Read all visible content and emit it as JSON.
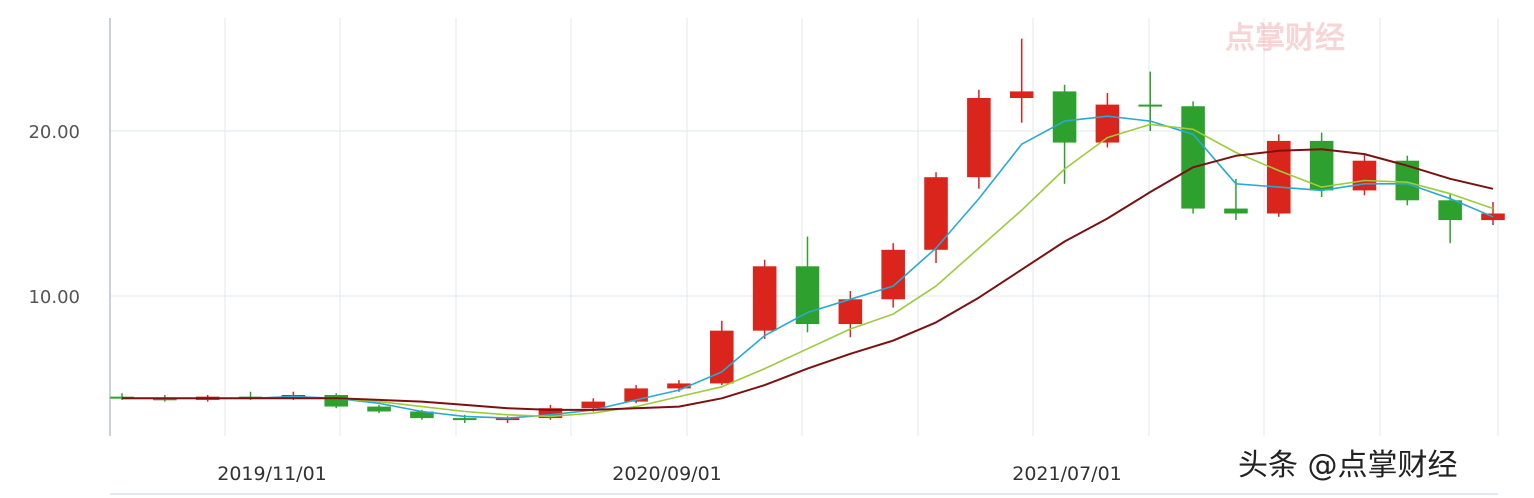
{
  "watermark": {
    "logo_text": "点掌财经",
    "corner_text": "头条 @点掌财经"
  },
  "colors": {
    "up": "#d9251c",
    "down": "#2ea02e",
    "ma_fast": "#2aa9d2",
    "ma_mid": "#9ccb3c",
    "ma_slow": "#7a1212",
    "grid": "#e1e8ee"
  },
  "chart_data": {
    "type": "candlestick",
    "title": "",
    "xlabel": "",
    "ylabel": "",
    "ylim": [
      0,
      26
    ],
    "grid": true,
    "x_tick_labels": [
      "2019/11/01",
      "2020/09/01",
      "2021/07/01"
    ],
    "y_tick_labels": [
      "10.00",
      "20.00"
    ],
    "y_ticks": [
      10,
      20
    ],
    "series": [
      {
        "name": "",
        "kind": "candles",
        "ohlc": [
          [
            "2019-09",
            3.9,
            4.1,
            3.7,
            3.8
          ],
          [
            "2019-10",
            3.8,
            4.0,
            3.6,
            3.7
          ],
          [
            "2019-11",
            3.7,
            4.0,
            3.6,
            3.9
          ],
          [
            "2019-12",
            3.9,
            4.2,
            3.7,
            3.8
          ],
          [
            "2020-01",
            3.8,
            4.2,
            3.7,
            4.0
          ],
          [
            "2020-02",
            4.0,
            4.1,
            3.2,
            3.3
          ],
          [
            "2020-03",
            3.3,
            3.4,
            2.9,
            3.0
          ],
          [
            "2020-04",
            3.0,
            3.1,
            2.5,
            2.6
          ],
          [
            "2020-05",
            2.6,
            2.8,
            2.3,
            2.5
          ],
          [
            "2020-06",
            2.5,
            2.7,
            2.3,
            2.6
          ],
          [
            "2020-07",
            2.6,
            3.4,
            2.5,
            3.2
          ],
          [
            "2020-08",
            3.2,
            3.8,
            3.0,
            3.6
          ],
          [
            "2020-09",
            3.6,
            4.6,
            3.5,
            4.4
          ],
          [
            "2020-10",
            4.4,
            4.9,
            4.2,
            4.7
          ],
          [
            "2020-11",
            4.7,
            8.5,
            4.6,
            7.9
          ],
          [
            "2020-12",
            7.9,
            12.2,
            7.4,
            11.8
          ],
          [
            "2021-01",
            11.8,
            13.6,
            7.8,
            8.3
          ],
          [
            "2021-02",
            8.3,
            10.3,
            7.5,
            9.8
          ],
          [
            "2021-03",
            9.8,
            13.2,
            9.3,
            12.8
          ],
          [
            "2021-04",
            12.8,
            17.5,
            12.0,
            17.2
          ],
          [
            "2021-05",
            17.2,
            22.5,
            16.5,
            22.0
          ],
          [
            "2021-06",
            22.0,
            25.6,
            20.5,
            22.4
          ],
          [
            "2021-07",
            22.4,
            22.8,
            16.8,
            19.3
          ],
          [
            "2021-08",
            19.3,
            22.3,
            19.0,
            21.6
          ],
          [
            "2021-09",
            21.6,
            23.6,
            20.0,
            21.5
          ],
          [
            "2021-10",
            21.5,
            21.8,
            15.0,
            15.3
          ],
          [
            "2021-11",
            15.3,
            17.1,
            14.6,
            15.0
          ],
          [
            "2021-12",
            15.0,
            19.8,
            14.8,
            19.4
          ],
          [
            "2022-01",
            19.4,
            19.9,
            16.0,
            16.4
          ],
          [
            "2022-02",
            16.4,
            18.6,
            16.1,
            18.2
          ],
          [
            "2022-03",
            18.2,
            18.5,
            15.5,
            15.8
          ],
          [
            "2022-04",
            15.8,
            16.2,
            13.2,
            14.6
          ],
          [
            "2022-05",
            14.6,
            15.7,
            14.3,
            15.0
          ]
        ]
      },
      {
        "name": "",
        "kind": "ma_fast",
        "values": [
          3.8,
          3.8,
          3.8,
          3.8,
          3.9,
          3.8,
          3.5,
          3.0,
          2.7,
          2.6,
          2.8,
          3.1,
          3.7,
          4.3,
          5.4,
          7.6,
          9.0,
          9.8,
          10.6,
          12.9,
          15.9,
          19.2,
          20.6,
          20.9,
          20.6,
          19.8,
          16.8,
          16.6,
          16.4,
          16.8,
          16.8,
          15.9,
          14.8
        ]
      },
      {
        "name": "",
        "kind": "ma_mid",
        "values": [
          3.8,
          3.8,
          3.8,
          3.8,
          3.8,
          3.8,
          3.6,
          3.3,
          3.0,
          2.8,
          2.7,
          2.9,
          3.3,
          3.9,
          4.5,
          5.6,
          6.8,
          8.0,
          8.9,
          10.6,
          12.9,
          15.2,
          17.7,
          19.6,
          20.4,
          20.1,
          18.7,
          17.6,
          16.6,
          17.0,
          16.9,
          16.2,
          15.3
        ]
      },
      {
        "name": "",
        "kind": "ma_slow",
        "values": [
          3.8,
          3.8,
          3.8,
          3.8,
          3.8,
          3.8,
          3.7,
          3.6,
          3.4,
          3.2,
          3.1,
          3.1,
          3.2,
          3.3,
          3.8,
          4.6,
          5.6,
          6.5,
          7.3,
          8.4,
          9.9,
          11.6,
          13.3,
          14.7,
          16.3,
          17.8,
          18.5,
          18.8,
          18.9,
          18.6,
          17.9,
          17.1,
          16.5
        ]
      }
    ]
  }
}
